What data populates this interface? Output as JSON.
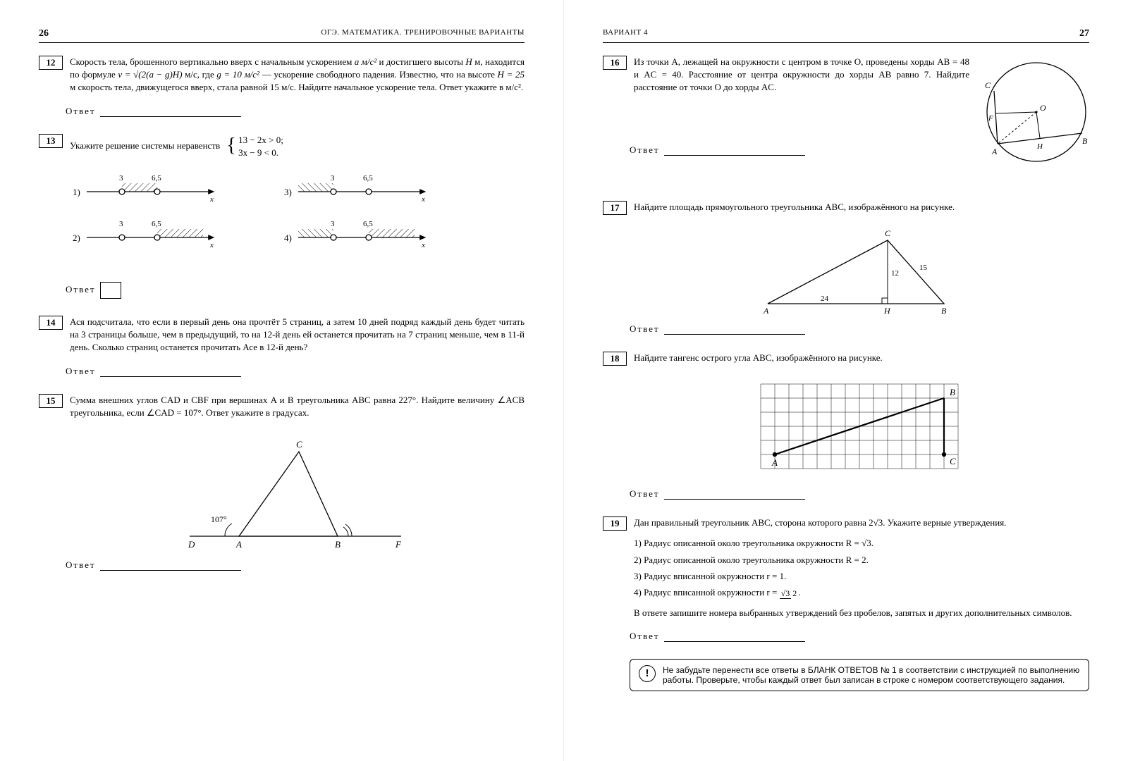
{
  "meta": {
    "book_header": "ОГЭ. МАТЕМАТИКА. ТРЕНИРОВОЧНЫЕ ВАРИАНТЫ",
    "variant_header": "ВАРИАНТ 4",
    "left_page_number": "26",
    "right_page_number": "27",
    "answer_label": "Ответ"
  },
  "p12": {
    "num": "12",
    "text_pre": "Скорость тела, брошенного вертикально вверх с начальным ускорением ",
    "a_units": "a м/с²",
    "text_mid1": " и достигшего высоты ",
    "H": "H",
    "text_mid2": " м, находится по формуле ",
    "formula": "v = √(2(a − g)H)",
    "units1": " м/с, где ",
    "g": "g = 10 м/с²",
    "text_mid3": " — ускорение свободного падения. Известно, что на высоте ",
    "H25": "H = 25",
    "text_mid4": " м скорость тела, движущегося вверх, стала равной 15 м/с. Найдите начальное ускорение тела. Ответ укажите в м/с²."
  },
  "p13": {
    "num": "13",
    "text": "Укажите решение системы неравенств",
    "sys_top": "13 − 2x > 0;",
    "sys_bot": "3x − 9 < 0.",
    "tick_a": "3",
    "tick_b": "6,5",
    "axis": "x",
    "opts": {
      "o1": "1)",
      "o2": "2)",
      "o3": "3)",
      "o4": "4)"
    }
  },
  "p14": {
    "num": "14",
    "text": "Ася подсчитала, что если в первый день она прочтёт 5 страниц, а затем 10 дней подряд каждый день будет читать на 3 страницы больше, чем в предыдущий, то на 12-й день ей останется прочитать на 7 страниц меньше, чем в 11-й день. Сколько страниц останется прочитать Асе в 12-й день?"
  },
  "p15": {
    "num": "15",
    "text": "Сумма внешних углов CAD и CBF при вершинах A и B треугольника ABC равна 227°. Найдите величину ∠ACB треугольника, если ∠CAD = 107°. Ответ укажите в градусах.",
    "angle_label": "107°",
    "pts": {
      "D": "D",
      "A": "A",
      "B": "B",
      "F": "F",
      "C": "C"
    }
  },
  "p16": {
    "num": "16",
    "text": "Из точки A, лежащей на окружности с центром в точке O, проведены хорды AB = 48 и AC = 40. Расстояние от центра окружности до хорды AB равно 7. Найдите расстояние от точки O до хорды AC.",
    "pts": {
      "A": "A",
      "B": "B",
      "C": "C",
      "O": "O",
      "F": "F",
      "H": "H"
    }
  },
  "p17": {
    "num": "17",
    "text": "Найдите площадь прямоугольного треугольника ABC, изображённого на рисунке.",
    "labels": {
      "A": "A",
      "B": "B",
      "C": "C",
      "H": "H",
      "a": "24",
      "b": "12",
      "c": "15"
    }
  },
  "p18": {
    "num": "18",
    "text": "Найдите тангенс острого угла ABC, изображённого на рисунке.",
    "pts": {
      "A": "A",
      "B": "B",
      "C": "C"
    },
    "grid": {
      "cols": 14,
      "rows": 6,
      "A": [
        1,
        5
      ],
      "B": [
        13,
        1
      ],
      "C": [
        13,
        5
      ]
    }
  },
  "p19": {
    "num": "19",
    "text": "Дан правильный треугольник ABC, сторона которого равна 2√3. Укажите верные утверждения.",
    "opts": {
      "o1": "1) Радиус описанной около треугольника окружности R = √3.",
      "o2": "2) Радиус описанной около треугольника окружности R = 2.",
      "o3": "3) Радиус вписанной окружности r = 1.",
      "o4_pre": "4) Радиус вписанной окружности r = ",
      "o4_num": "√3",
      "o4_den": "2",
      "o4_post": "."
    },
    "instr": "В ответе запишите номера выбранных утверждений без пробелов, запятых и других дополнительных символов."
  },
  "notice": {
    "text": "Не забудьте перенести все ответы в БЛАНК ОТВЕТОВ № 1 в соответствии с инструкцией по выполнению работы. Проверьте, чтобы каждый ответ был записан в строке с номером соответствующего задания."
  },
  "style": {
    "stroke": "#000",
    "hatch_spacing": 5,
    "line_weight": 1.3,
    "arrow_size": 6
  }
}
